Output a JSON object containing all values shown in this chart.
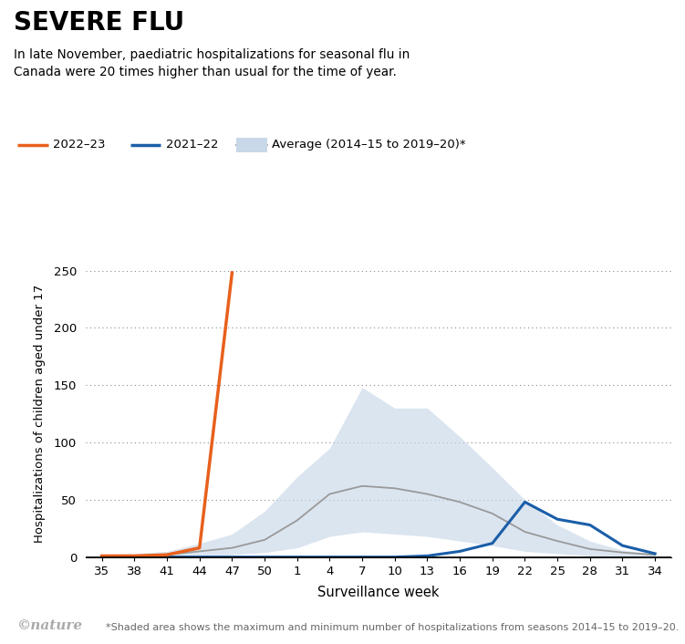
{
  "title": "SEVERE FLU",
  "subtitle": "In late November, paediatric hospitalizations for seasonal flu in\nCanada were 20 times higher than usual for the time of year.",
  "xlabel": "Surveillance week",
  "ylabel": "Hospitalizations of children aged under 17",
  "x_tick_labels": [
    "35",
    "38",
    "41",
    "44",
    "47",
    "50",
    "1",
    "4",
    "7",
    "10",
    "13",
    "16",
    "19",
    "22",
    "25",
    "28",
    "31",
    "34"
  ],
  "ylim": [
    0,
    250
  ],
  "yticks": [
    0,
    50,
    100,
    150,
    200,
    250
  ],
  "footnote": "*Shaded area shows the maximum and minimum number of hospitalizations from seasons 2014–15 to 2019–20.",
  "nature_text": "©nature",
  "line_2022_color": "#E8601C",
  "line_2021_color": "#1A5EA8",
  "avg_line_color": "#999999",
  "avg_fill_color": "#C8D8E8",
  "x_positions": [
    0,
    1,
    2,
    3,
    4,
    5,
    6,
    7,
    8,
    9,
    10,
    11,
    12,
    13,
    14,
    15,
    16,
    17
  ],
  "line_2022": [
    1,
    1,
    2,
    8,
    248,
    null,
    null,
    null,
    null,
    null,
    null,
    null,
    null,
    null,
    null,
    null,
    null,
    null
  ],
  "line_2021": [
    0,
    0,
    0,
    0,
    0,
    0,
    0,
    0,
    0,
    0,
    1,
    5,
    12,
    48,
    33,
    28,
    10,
    3
  ],
  "avg_mean": [
    1,
    1,
    2,
    5,
    8,
    15,
    32,
    55,
    62,
    60,
    55,
    48,
    38,
    22,
    14,
    7,
    4,
    2
  ],
  "avg_min": [
    0,
    0,
    0,
    1,
    2,
    4,
    8,
    18,
    22,
    20,
    18,
    14,
    10,
    5,
    3,
    1,
    0,
    0
  ],
  "avg_max": [
    2,
    3,
    5,
    12,
    20,
    40,
    70,
    95,
    148,
    130,
    130,
    105,
    78,
    50,
    28,
    14,
    6,
    3
  ]
}
